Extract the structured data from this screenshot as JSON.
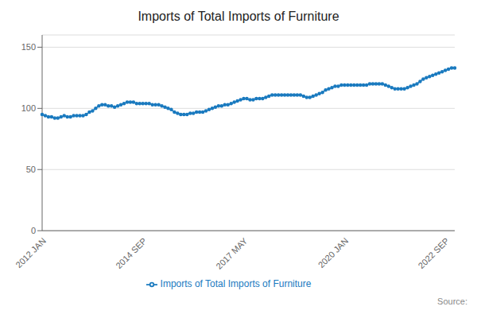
{
  "chart_data": {
    "type": "line",
    "title": "Imports of Total Imports of Furniture",
    "annotations": [
      "Source:"
    ],
    "categories": [
      "2012 JAN",
      null,
      null,
      null,
      null,
      null,
      null,
      null,
      null,
      null,
      null,
      null,
      null,
      null,
      null,
      null,
      null,
      null,
      null,
      null,
      null,
      null,
      null,
      null,
      null,
      null,
      null,
      null,
      null,
      null,
      null,
      null,
      "2014 SEP",
      null,
      null,
      null,
      null,
      null,
      null,
      null,
      null,
      null,
      null,
      null,
      null,
      null,
      null,
      null,
      null,
      null,
      null,
      null,
      null,
      null,
      null,
      null,
      null,
      null,
      null,
      null,
      null,
      null,
      null,
      null,
      "2017 MAY",
      null,
      null,
      null,
      null,
      null,
      null,
      null,
      null,
      null,
      null,
      null,
      null,
      null,
      null,
      null,
      null,
      null,
      null,
      null,
      null,
      null,
      null,
      null,
      null,
      null,
      null,
      null,
      null,
      null,
      null,
      null,
      "2020 JAN",
      null,
      null,
      null,
      null,
      null,
      null,
      null,
      null,
      null,
      null,
      null,
      null,
      null,
      null,
      null,
      null,
      null,
      null,
      null,
      null,
      null,
      null,
      null,
      null,
      null,
      null,
      null,
      null,
      null,
      null,
      null,
      "2022 SEP",
      null,
      null,
      null
    ],
    "series": [
      {
        "name": "Imports of Total Imports of Furniture",
        "color": "#1a7abf",
        "marker": "circle",
        "values": [
          95,
          94,
          93,
          93,
          92,
          92,
          93,
          94,
          93,
          93,
          94,
          94,
          94,
          94,
          95,
          97,
          98,
          100,
          102,
          103,
          103,
          102,
          102,
          101,
          102,
          103,
          104,
          105,
          105,
          105,
          104,
          104,
          104,
          104,
          104,
          103,
          103,
          103,
          102,
          101,
          100,
          99,
          97,
          96,
          95,
          95,
          95,
          96,
          96,
          97,
          97,
          97,
          98,
          99,
          100,
          101,
          102,
          102,
          103,
          103,
          104,
          105,
          106,
          107,
          108,
          108,
          107,
          107,
          108,
          108,
          108,
          109,
          110,
          111,
          111,
          111,
          111,
          111,
          111,
          111,
          111,
          111,
          111,
          110,
          109,
          109,
          110,
          111,
          112,
          113,
          115,
          116,
          117,
          118,
          118,
          119,
          119,
          119,
          119,
          119,
          119,
          119,
          119,
          119,
          120,
          120,
          120,
          120,
          120,
          119,
          118,
          117,
          116,
          116,
          116,
          116,
          117,
          118,
          119,
          120,
          122,
          124,
          125,
          126,
          127,
          128,
          129,
          130,
          131,
          132,
          133,
          133
        ]
      }
    ],
    "ylim": [
      0,
      160
    ],
    "yticks": [
      0,
      50,
      100,
      150
    ],
    "grid": true,
    "legend": "bottom"
  }
}
